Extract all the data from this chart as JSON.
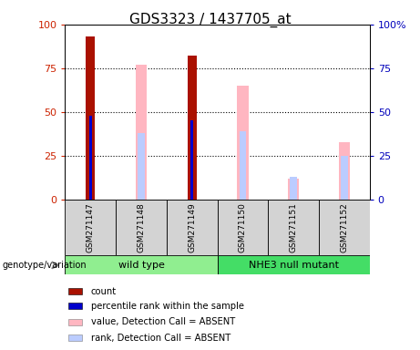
{
  "title": "GDS3323 / 1437705_at",
  "samples": [
    "GSM271147",
    "GSM271148",
    "GSM271149",
    "GSM271150",
    "GSM271151",
    "GSM271152"
  ],
  "count_values": [
    93,
    0,
    82,
    0,
    0,
    0
  ],
  "percentile_rank_values": [
    48,
    0,
    45,
    0,
    0,
    0
  ],
  "value_absent": [
    0,
    77,
    0,
    65,
    12,
    33
  ],
  "rank_absent": [
    0,
    38,
    0,
    39,
    13,
    25
  ],
  "groups": [
    {
      "label": "wild type",
      "indices": [
        0,
        1,
        2
      ],
      "color": "#90EE90"
    },
    {
      "label": "NHE3 null mutant",
      "indices": [
        3,
        4,
        5
      ],
      "color": "#44DD66"
    }
  ],
  "ylim": [
    0,
    100
  ],
  "left_yticks": [
    0,
    25,
    50,
    75,
    100
  ],
  "right_yticks": [
    0,
    25,
    50,
    75,
    100
  ],
  "left_tick_color": "#CC2200",
  "right_tick_color": "#0000BB",
  "color_count": "#AA1100",
  "color_rank": "#0000CC",
  "color_value_absent": "#FFB6C1",
  "color_rank_absent": "#BBCCFF",
  "background_labels": "#D3D3D3",
  "genotype_label": "genotype/variation",
  "legend_items": [
    {
      "label": "count",
      "color": "#AA1100"
    },
    {
      "label": "percentile rank within the sample",
      "color": "#0000CC"
    },
    {
      "label": "value, Detection Call = ABSENT",
      "color": "#FFB6C1"
    },
    {
      "label": "rank, Detection Call = ABSENT",
      "color": "#BBCCFF"
    }
  ]
}
